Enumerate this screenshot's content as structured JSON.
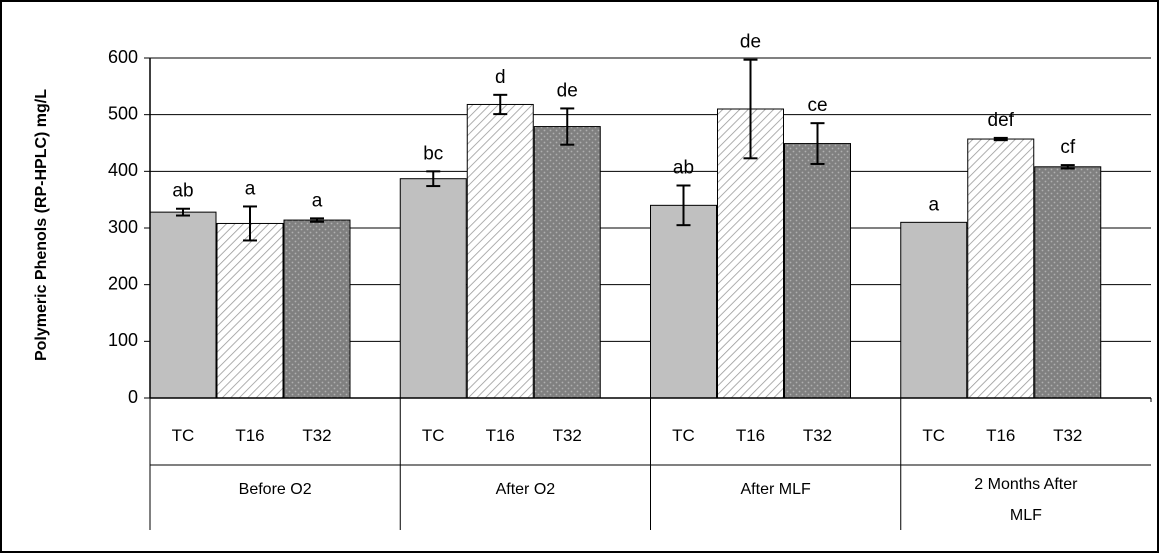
{
  "chart_data": {
    "type": "bar",
    "title": "",
    "xlabel": "",
    "ylabel": "Polymeric Phenols (RP-HPLC) mg/L",
    "ylim": [
      0,
      600
    ],
    "yticks": [
      0,
      100,
      200,
      300,
      400,
      500,
      600
    ],
    "grid": "horizontal",
    "legend": "none",
    "groups": [
      {
        "label": "Before O2",
        "bars": [
          {
            "name": "TC",
            "value": 328,
            "error": 6,
            "sig": "ab"
          },
          {
            "name": "T16",
            "value": 308,
            "error": 30,
            "sig": "a"
          },
          {
            "name": "T32",
            "value": 314,
            "error": 3,
            "sig": "a"
          }
        ]
      },
      {
        "label": "After O2",
        "bars": [
          {
            "name": "TC",
            "value": 387,
            "error": 13,
            "sig": "bc"
          },
          {
            "name": "T16",
            "value": 518,
            "error": 17,
            "sig": "d"
          },
          {
            "name": "T32",
            "value": 479,
            "error": 32,
            "sig": "de"
          }
        ]
      },
      {
        "label": "After MLF",
        "bars": [
          {
            "name": "TC",
            "value": 340,
            "error": 35,
            "sig": "ab"
          },
          {
            "name": "T16",
            "value": 510,
            "error": 87,
            "sig": "de"
          },
          {
            "name": "T32",
            "value": 449,
            "error": 36,
            "sig": "ce"
          }
        ]
      },
      {
        "label": "2 Months After MLF",
        "label_lines": [
          "2 Months After",
          "MLF"
        ],
        "bars": [
          {
            "name": "TC",
            "value": 310,
            "error": 0,
            "sig": "a"
          },
          {
            "name": "T16",
            "value": 457,
            "error": 2,
            "sig": "def"
          },
          {
            "name": "T32",
            "value": 408,
            "error": 3,
            "sig": "cf"
          }
        ]
      }
    ],
    "series_styles": {
      "TC": {
        "fill": "#c0c0c0",
        "pattern": "solid"
      },
      "T16": {
        "fill": "#ffffff",
        "pattern": "diagonal-hatch",
        "pattern_color": "#9a9a9a"
      },
      "T32": {
        "fill": "#808080",
        "pattern": "dots",
        "pattern_color": "#b0b0b0"
      }
    }
  }
}
